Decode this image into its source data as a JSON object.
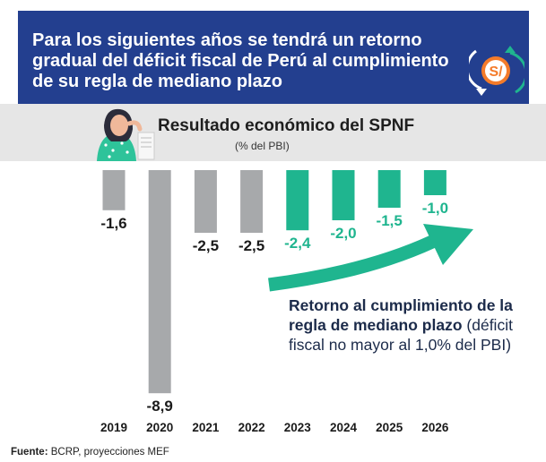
{
  "header": {
    "title": "Para los siguientes años se tendrá un retorno gradual del déficit fiscal de Perú al cumplimiento de su regla de mediano plazo",
    "coin_symbol": "S/"
  },
  "chart_data": {
    "type": "bar",
    "title": "Resultado económico del SPNF",
    "subtitle": "(% del PBI)",
    "categories": [
      "2019",
      "2020",
      "2021",
      "2022",
      "2023",
      "2024",
      "2025",
      "2026"
    ],
    "values": [
      -1.6,
      -8.9,
      -2.5,
      -2.5,
      -2.4,
      -2.0,
      -1.5,
      -1.0
    ],
    "value_labels": [
      "-1,6",
      "-8,9",
      "-2,5",
      "-2,5",
      "-2,4",
      "-2,0",
      "-1,5",
      "-1,0"
    ],
    "series_split": {
      "actual": [
        "2019",
        "2020",
        "2021",
        "2022"
      ],
      "projected": [
        "2023",
        "2024",
        "2025",
        "2026"
      ]
    },
    "colors": {
      "actual": "#a7a9ab",
      "projected": "#1fb58f",
      "actual_label": "#1a1a1a",
      "projected_label": "#1fb58f"
    },
    "annotation_bold": "Retorno al cumplimiento de la regla de mediano plazo",
    "annotation_normal": "(déficit fiscal no mayor al 1,0% del PBI)",
    "grid": false,
    "legend": "none"
  },
  "footer": {
    "source_label": "Fuente:",
    "source_text": " BCRP, proyecciones MEF"
  },
  "palette": {
    "banner_bg": "#233f8f",
    "subhead_bg": "#e6e6e6",
    "coin": "#f47b2a",
    "arrow_green": "#1fb58f"
  },
  "icons": [
    "coin-icon",
    "woman-illustration",
    "trend-arrow-icon"
  ]
}
